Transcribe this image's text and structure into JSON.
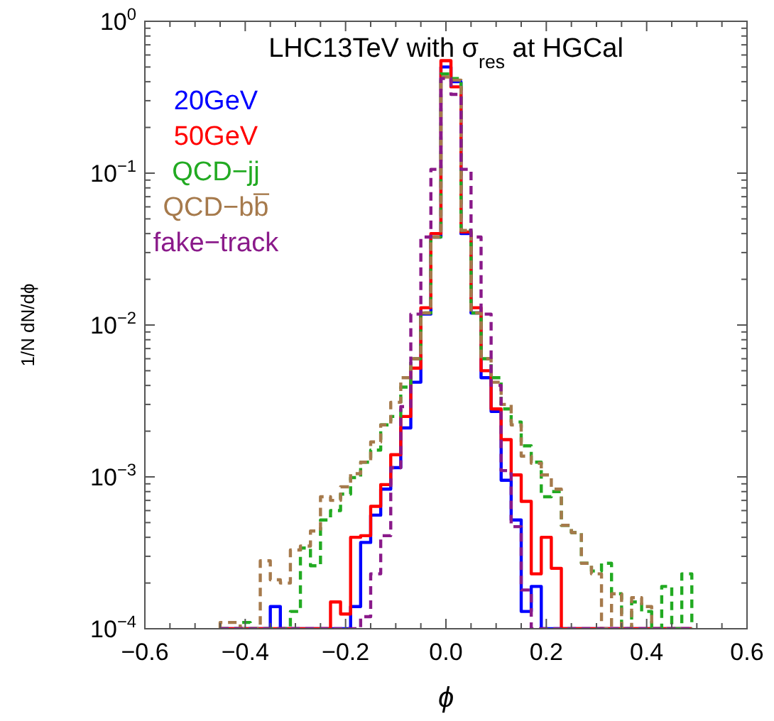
{
  "chart_data": {
    "type": "histogram",
    "title": "LHC13TeV with σ$_{res}$ at HGCal",
    "xlabel": "ϕ",
    "ylabel": "1/N dN/dϕ",
    "log": "y",
    "legend": "top left",
    "bins": [
      -0.45,
      -0.43,
      -0.41,
      -0.39,
      -0.37,
      -0.35,
      -0.33,
      -0.31,
      -0.29,
      -0.27,
      -0.25,
      -0.23,
      -0.21,
      -0.19,
      -0.17,
      -0.15,
      -0.13,
      -0.11,
      -0.09,
      -0.07,
      -0.05,
      -0.03,
      -0.01,
      0.01,
      0.03,
      0.05,
      0.07,
      0.09,
      0.11,
      0.13,
      0.15,
      0.17,
      0.19,
      0.21,
      0.23,
      0.25,
      0.27,
      0.29,
      0.31,
      0.33,
      0.35,
      0.37,
      0.39,
      0.41,
      0.43,
      0.45,
      0.47,
      0.49
    ],
    "xlim": [
      -0.6,
      0.6
    ],
    "ylim": [
      0.0001,
      1
    ],
    "xticks": [
      {
        "value": -0.6,
        "label": "−0.6"
      },
      {
        "value": -0.55,
        "label": null
      },
      {
        "value": -0.5,
        "label": null
      },
      {
        "value": -0.45,
        "label": null
      },
      {
        "value": -0.4,
        "label": "−0.4"
      },
      {
        "value": -0.35,
        "label": null
      },
      {
        "value": -0.3,
        "label": null
      },
      {
        "value": -0.25,
        "label": null
      },
      {
        "value": -0.2,
        "label": "−0.2"
      },
      {
        "value": -0.15,
        "label": null
      },
      {
        "value": -0.1,
        "label": null
      },
      {
        "value": -0.05,
        "label": null
      },
      {
        "value": 0,
        "label": "0.0"
      },
      {
        "value": 0.05,
        "label": null
      },
      {
        "value": 0.1,
        "label": null
      },
      {
        "value": 0.15,
        "label": null
      },
      {
        "value": 0.2,
        "label": "0.2"
      },
      {
        "value": 0.25,
        "label": null
      },
      {
        "value": 0.3,
        "label": null
      },
      {
        "value": 0.35,
        "label": null
      },
      {
        "value": 0.4,
        "label": "0.4"
      },
      {
        "value": 0.45,
        "label": null
      },
      {
        "value": 0.5,
        "label": null
      },
      {
        "value": 0.55,
        "label": null
      },
      {
        "value": 0.6,
        "label": "0.6"
      }
    ],
    "yticks": [
      {
        "value": 0.0001,
        "label": "10$^{−4}$"
      },
      {
        "value": 0.0002,
        "label": null
      },
      {
        "value": 0.0003,
        "label": null
      },
      {
        "value": 0.0004,
        "label": null
      },
      {
        "value": 0.0005,
        "label": null
      },
      {
        "value": 0.0006,
        "label": null
      },
      {
        "value": 0.0007,
        "label": null
      },
      {
        "value": 0.0008,
        "label": null
      },
      {
        "value": 0.0009,
        "label": null
      },
      {
        "value": 0.001,
        "label": "10$^{−3}$"
      },
      {
        "value": 0.002,
        "label": null
      },
      {
        "value": 0.003,
        "label": null
      },
      {
        "value": 0.004,
        "label": null
      },
      {
        "value": 0.005,
        "label": null
      },
      {
        "value": 0.006,
        "label": null
      },
      {
        "value": 0.007,
        "label": null
      },
      {
        "value": 0.008,
        "label": null
      },
      {
        "value": 0.009,
        "label": null
      },
      {
        "value": 0.01,
        "label": "10$^{−2}$"
      },
      {
        "value": 0.02,
        "label": null
      },
      {
        "value": 0.03,
        "label": null
      },
      {
        "value": 0.04,
        "label": null
      },
      {
        "value": 0.05,
        "label": null
      },
      {
        "value": 0.06,
        "label": null
      },
      {
        "value": 0.07,
        "label": null
      },
      {
        "value": 0.08,
        "label": null
      },
      {
        "value": 0.09,
        "label": null
      },
      {
        "value": 0.1,
        "label": "10$^{−1}$"
      },
      {
        "value": 0.2,
        "label": null
      },
      {
        "value": 0.3,
        "label": null
      },
      {
        "value": 0.4,
        "label": null
      },
      {
        "value": 0.5,
        "label": null
      },
      {
        "value": 0.6,
        "label": null
      },
      {
        "value": 0.7,
        "label": null
      },
      {
        "value": 0.8,
        "label": null
      },
      {
        "value": 0.9,
        "label": null
      },
      {
        "value": 1,
        "label": "10$^{0}$"
      }
    ],
    "series": [
      {
        "name": "20GeV",
        "color": "#0000ff",
        "line_style": "solid",
        "values": [
          null,
          null,
          null,
          null,
          null,
          0.00014,
          null,
          null,
          null,
          null,
          null,
          null,
          null,
          0.00014,
          0.00037,
          0.00056,
          0.00083,
          0.00115,
          0.0021,
          0.0042,
          0.0118,
          0.038,
          0.5,
          0.4,
          0.04,
          0.012,
          0.0045,
          0.0027,
          0.00095,
          0.00052,
          0.00013,
          0.00019,
          null,
          null,
          null,
          null,
          null,
          null,
          null,
          null,
          null,
          null,
          null,
          null,
          null,
          null,
          null
        ]
      },
      {
        "name": "50GeV",
        "color": "#ff0000",
        "line_style": "solid",
        "values": [
          null,
          null,
          null,
          null,
          null,
          null,
          null,
          null,
          null,
          null,
          null,
          0.00015,
          0.000125,
          0.0004,
          0.00041,
          0.00064,
          0.00089,
          0.0014,
          0.0025,
          0.0052,
          0.013,
          0.04,
          0.55,
          0.37,
          0.041,
          0.013,
          0.005,
          0.0028,
          0.00176,
          0.00103,
          0.00069,
          0.00023,
          0.0004,
          0.00025,
          null,
          null,
          null,
          null,
          null,
          null,
          null,
          null,
          null,
          null,
          null,
          null,
          null
        ]
      },
      {
        "name": "QCD−jj",
        "color": "#22aa22",
        "line_style": "dashed",
        "values": [
          null,
          null,
          0.00011,
          null,
          null,
          null,
          null,
          0.00013,
          0.00034,
          0.00026,
          0.00052,
          0.0006,
          0.00077,
          0.00099,
          0.00125,
          0.0015,
          0.0022,
          0.0025,
          0.0039,
          0.006,
          0.012,
          0.038,
          0.45,
          0.42,
          0.042,
          0.012,
          0.006,
          0.0045,
          0.0028,
          0.0023,
          0.0016,
          0.00125,
          0.00074,
          0.0008,
          0.00048,
          0.00043,
          0.00027,
          0.00024,
          0.00027,
          0.00017,
          null,
          0.00015,
          0.00013,
          null,
          0.00019,
          null,
          0.00023
        ]
      },
      {
        "name": "QCD−bb̅",
        "color": "#a67a4c",
        "line_style": "dashed",
        "values": [
          0.00011,
          0.00011,
          null,
          null,
          0.00028,
          0.00021,
          0.0002,
          0.00033,
          0.00035,
          0.00044,
          0.00074,
          0.0007,
          0.00086,
          0.00105,
          0.00125,
          0.0017,
          0.0022,
          0.0031,
          0.0045,
          0.006,
          0.012,
          0.038,
          0.43,
          0.41,
          0.042,
          0.012,
          0.006,
          0.0042,
          0.003,
          0.0022,
          0.00137,
          0.00123,
          0.00103,
          0.00083,
          0.00048,
          0.00043,
          0.00027,
          0.00023,
          null,
          0.00017,
          null,
          0.00016,
          0.00014,
          null,
          null,
          null,
          null
        ]
      },
      {
        "name": "fake−track",
        "color": "#8a1a8a",
        "line_style": "dashed",
        "values": [
          null,
          null,
          null,
          null,
          null,
          null,
          null,
          null,
          null,
          null,
          null,
          null,
          null,
          null,
          0.00012,
          0.00023,
          0.00041,
          0.00115,
          0.0029,
          0.0118,
          0.038,
          0.106,
          0.42,
          0.33,
          0.106,
          0.038,
          0.0118,
          0.004,
          0.0011,
          0.00047,
          0.00018,
          null,
          null,
          null,
          null,
          null,
          null,
          null,
          null,
          null,
          null,
          null,
          null,
          null,
          null,
          null,
          null
        ]
      }
    ]
  }
}
